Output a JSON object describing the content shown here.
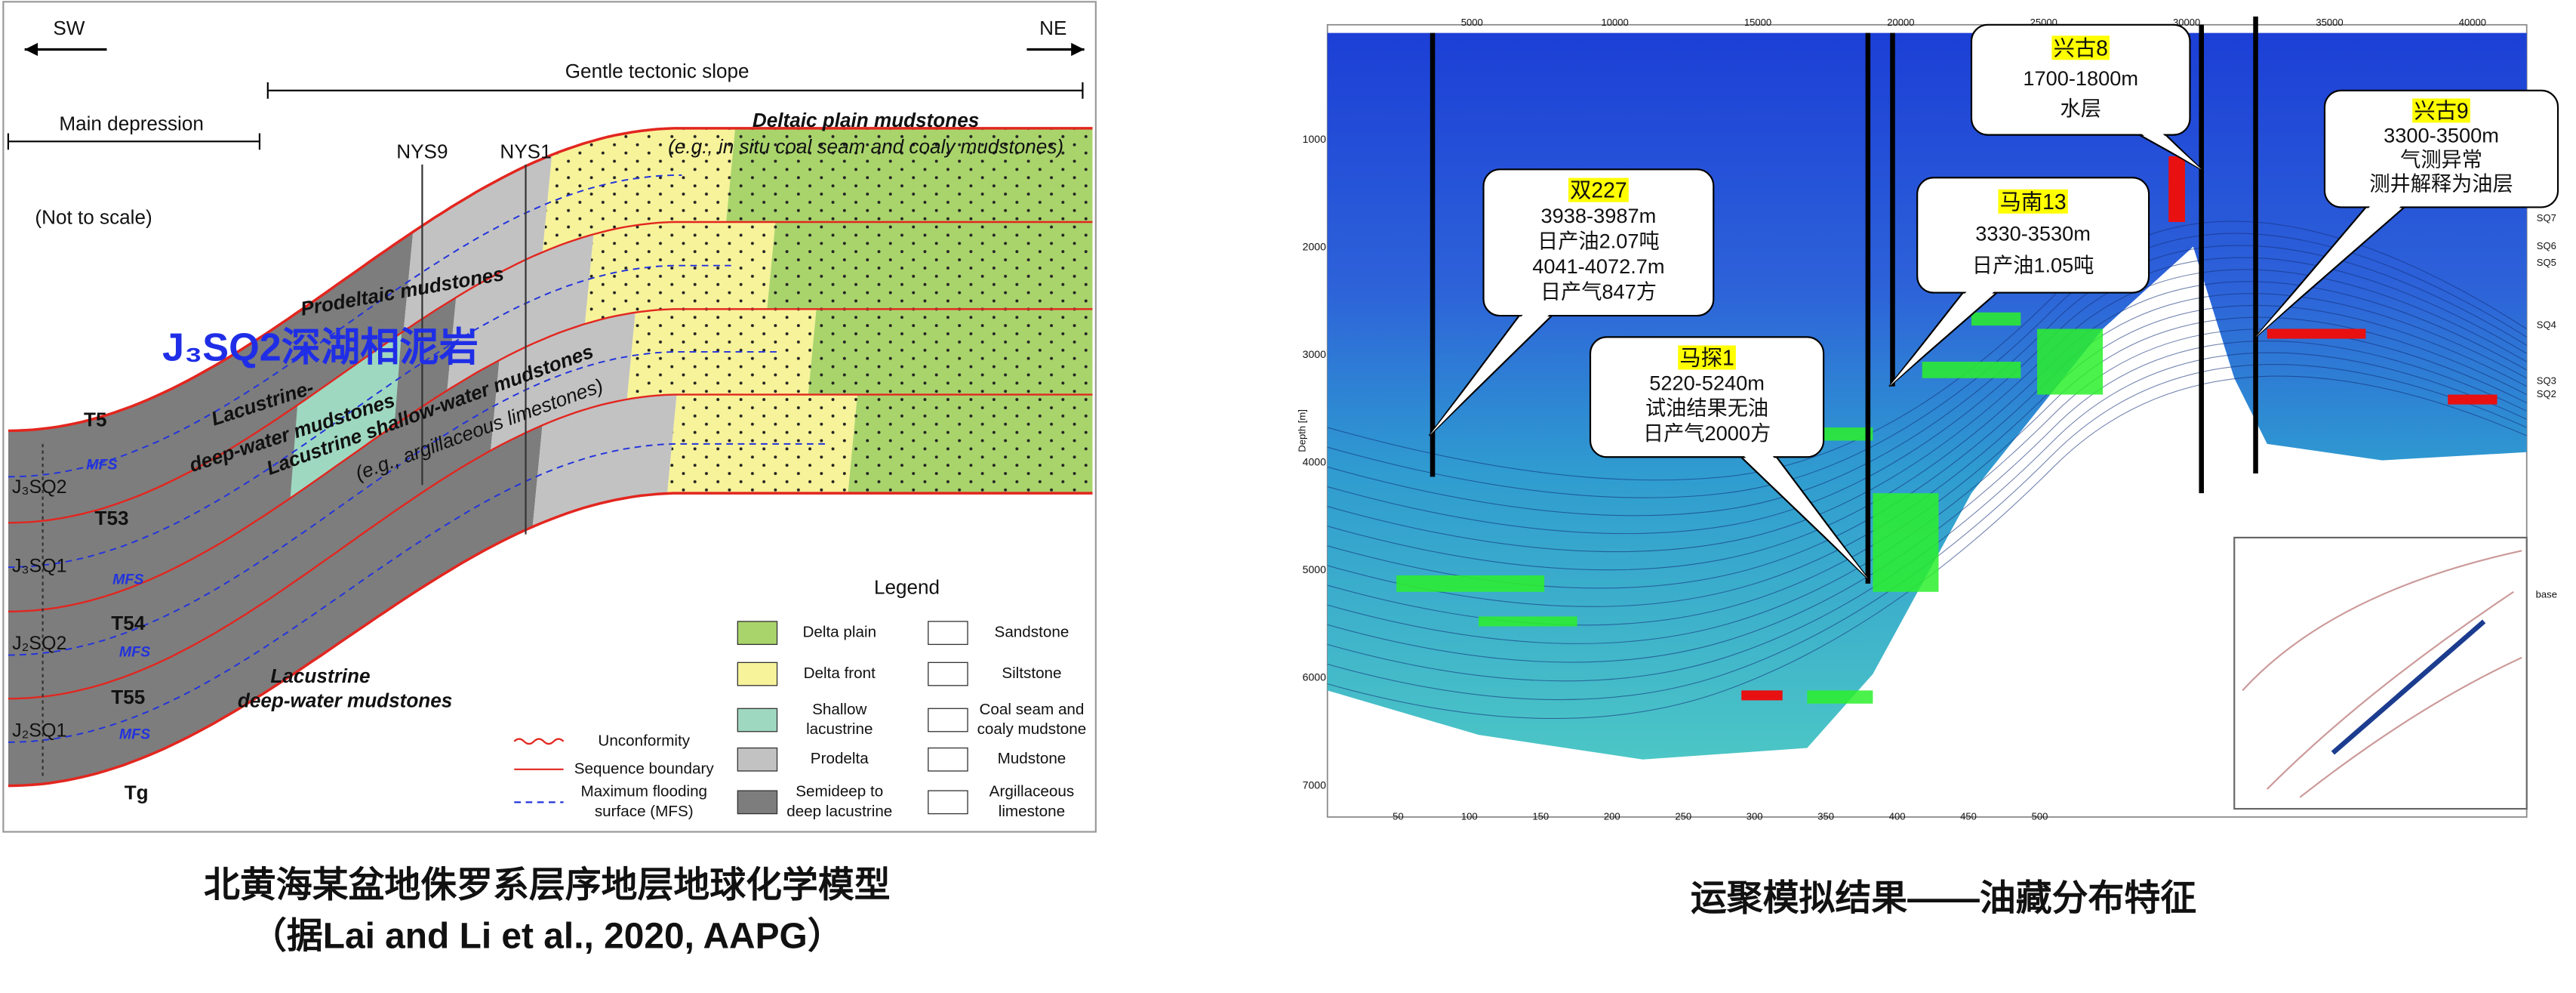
{
  "left_figure": {
    "direction_left": "SW",
    "direction_right": "NE",
    "slope_label": "Gentle tectonic slope",
    "depression_label": "Main depression",
    "scale_note": "(Not to scale)",
    "wells": [
      "NYS9",
      "NYS1"
    ],
    "deltaic_plain": "Deltaic plain mudstones",
    "deltaic_plain_note": "(e.g., in situ  coal seam and coaly mudstones)",
    "prodeltaic": "Prodeltaic mudstones",
    "highlight": "J₃SQ2深湖相泥岩",
    "upper_deep_water": [
      "Lacustrine-",
      "deep-water mudstones"
    ],
    "shallow_water": [
      "Lacustrine shallow-water mudstones",
      "(e.g., argillaceous limestones)"
    ],
    "lower_deep_water": [
      "Lacustrine",
      "deep-water mudstones"
    ],
    "surfaces": [
      "T5",
      "T53",
      "T54",
      "T55",
      "Tg"
    ],
    "sequences": [
      "J₃SQ2",
      "J₃SQ1",
      "J₂SQ2",
      "J₂SQ1"
    ],
    "mfs": "MFS",
    "legend": {
      "title": "Legend",
      "facies": [
        [
          "Delta plain"
        ],
        [
          "Delta front"
        ],
        [
          "Shallow",
          "lacustrine"
        ],
        [
          "Prodelta"
        ],
        [
          "Semideep to",
          "deep lacustrine"
        ]
      ],
      "lithology": [
        [
          "Sandstone"
        ],
        [
          "Siltstone"
        ],
        [
          "Coal seam and",
          "coaly mudstone"
        ],
        [
          "Mudstone"
        ],
        [
          "Argillaceous",
          "limestone"
        ]
      ],
      "lines": [
        [
          "Unconformity"
        ],
        [
          "Sequence boundary"
        ],
        [
          "Maximum flooding",
          "surface (MFS)"
        ]
      ]
    }
  },
  "left_caption": [
    "北黄海某盆地侏罗系层序地层地球化学模型",
    "（据Lai and Li et al., 2020, AAPG）"
  ],
  "right_figure": {
    "x_ticks": [
      5000,
      10000,
      15000,
      20000,
      25000,
      30000,
      35000,
      40000
    ],
    "depth_ticks": [
      1000,
      2000,
      3000,
      4000,
      5000,
      6000,
      7000
    ],
    "distance_ticks": [
      50,
      100,
      150,
      200,
      250,
      300,
      350,
      400,
      450,
      500
    ],
    "depth_label": "Depth [m]",
    "layer_labels": [
      "SQ7",
      "SQ6",
      "SQ5",
      "SQ4",
      "SQ3",
      "SQ2",
      "base"
    ],
    "callouts": [
      {
        "well": "双227",
        "lines": [
          "3938-3987m",
          "日产油2.07吨",
          "4041-4072.7m",
          "日产气847方"
        ]
      },
      {
        "well": "马探1",
        "lines": [
          "5220-5240m",
          "试油结果无油",
          "日产气2000方"
        ]
      },
      {
        "well": "兴古8",
        "lines": [
          "1700-1800m",
          "水层"
        ]
      },
      {
        "well": "马南13",
        "lines": [
          "3330-3530m",
          "日产油1.05吨"
        ]
      },
      {
        "well": "兴古9",
        "lines": [
          "3300-3500m",
          "气测异常",
          "测井解释为油层"
        ]
      }
    ]
  },
  "right_caption": "运聚模拟结果——油藏分布特征"
}
